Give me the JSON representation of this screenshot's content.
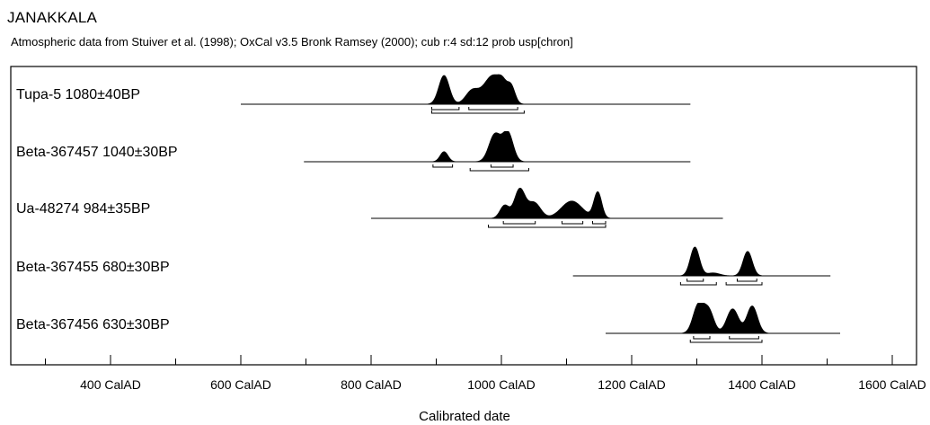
{
  "chart_data": {
    "type": "area",
    "title": "JANAKKALA",
    "subtitle": "Atmospheric data from Stuiver et al. (1998); OxCal v3.5 Bronk Ramsey (2000); cub r:4 sd:12 prob usp[chron]",
    "xlabel": "Calibrated date",
    "ylabel": "",
    "xlim": [
      150,
      1750
    ],
    "x_ticks": [
      {
        "value": 400,
        "label": "400 CalAD"
      },
      {
        "value": 600,
        "label": "600 CalAD"
      },
      {
        "value": 800,
        "label": "800 CalAD"
      },
      {
        "value": 1000,
        "label": "1000 CalAD"
      },
      {
        "value": 1200,
        "label": "1200 CalAD"
      },
      {
        "value": 1400,
        "label": "1400 CalAD"
      },
      {
        "value": 1600,
        "label": "1600 CalAD"
      }
    ],
    "series": [
      {
        "name": "Tupa-5  1080±40BP",
        "baseline_range": [
          600,
          1290
        ],
        "peaks": [
          {
            "center": 912,
            "sd": 8,
            "height": 1.0
          },
          {
            "center": 955,
            "sd": 10,
            "height": 0.45
          },
          {
            "center": 987,
            "sd": 14,
            "height": 1.0
          },
          {
            "center": 1015,
            "sd": 6,
            "height": 0.55
          },
          {
            "center": 1002,
            "sd": 6,
            "height": 0.35
          }
        ],
        "ranges": [
          [
            893,
            935
          ],
          [
            950,
            1025
          ]
        ],
        "outer_range": [
          893,
          1035
        ]
      },
      {
        "name": "Beta-367457  1040±30BP",
        "baseline_range": [
          697,
          1290
        ],
        "peaks": [
          {
            "center": 912,
            "sd": 6,
            "height": 0.35
          },
          {
            "center": 990,
            "sd": 9,
            "height": 0.95
          },
          {
            "center": 1010,
            "sd": 8,
            "height": 1.0
          }
        ],
        "ranges": [
          [
            895,
            925
          ]
        ],
        "outer_range": [
          952,
          1042
        ],
        "inner_range": [
          984,
          1018
        ]
      },
      {
        "name": "Ua-48274  984±35BP",
        "baseline_range": [
          800,
          1340
        ],
        "peaks": [
          {
            "center": 1005,
            "sd": 7,
            "height": 0.45
          },
          {
            "center": 1028,
            "sd": 8,
            "height": 1.0
          },
          {
            "center": 1050,
            "sd": 10,
            "height": 0.55
          },
          {
            "center": 1108,
            "sd": 16,
            "height": 0.6
          },
          {
            "center": 1148,
            "sd": 6,
            "height": 0.9
          }
        ],
        "ranges": [
          [
            1003,
            1052
          ],
          [
            1093,
            1125
          ],
          [
            1140,
            1160
          ]
        ],
        "outer_range": [
          980,
          1160
        ]
      },
      {
        "name": "Beta-367455  680±30BP",
        "baseline_range": [
          1110,
          1505
        ],
        "peaks": [
          {
            "center": 1297,
            "sd": 7,
            "height": 1.0
          },
          {
            "center": 1325,
            "sd": 10,
            "height": 0.1
          },
          {
            "center": 1378,
            "sd": 7,
            "height": 0.85
          }
        ],
        "ranges": [
          [
            1285,
            1310
          ],
          [
            1362,
            1392
          ]
        ],
        "outer_range_1": [
          1275,
          1330
        ],
        "outer_range_2": [
          1345,
          1400
        ]
      },
      {
        "name": "Beta-367456  630±30BP",
        "baseline_range": [
          1160,
          1520
        ],
        "peaks": [
          {
            "center": 1302,
            "sd": 8,
            "height": 0.95
          },
          {
            "center": 1318,
            "sd": 8,
            "height": 0.8
          },
          {
            "center": 1355,
            "sd": 9,
            "height": 0.85
          },
          {
            "center": 1385,
            "sd": 8,
            "height": 0.95
          }
        ],
        "ranges": [
          [
            1295,
            1320
          ],
          [
            1350,
            1395
          ]
        ],
        "outer_range": [
          1290,
          1400
        ]
      }
    ],
    "grid": false,
    "legend": "none"
  }
}
